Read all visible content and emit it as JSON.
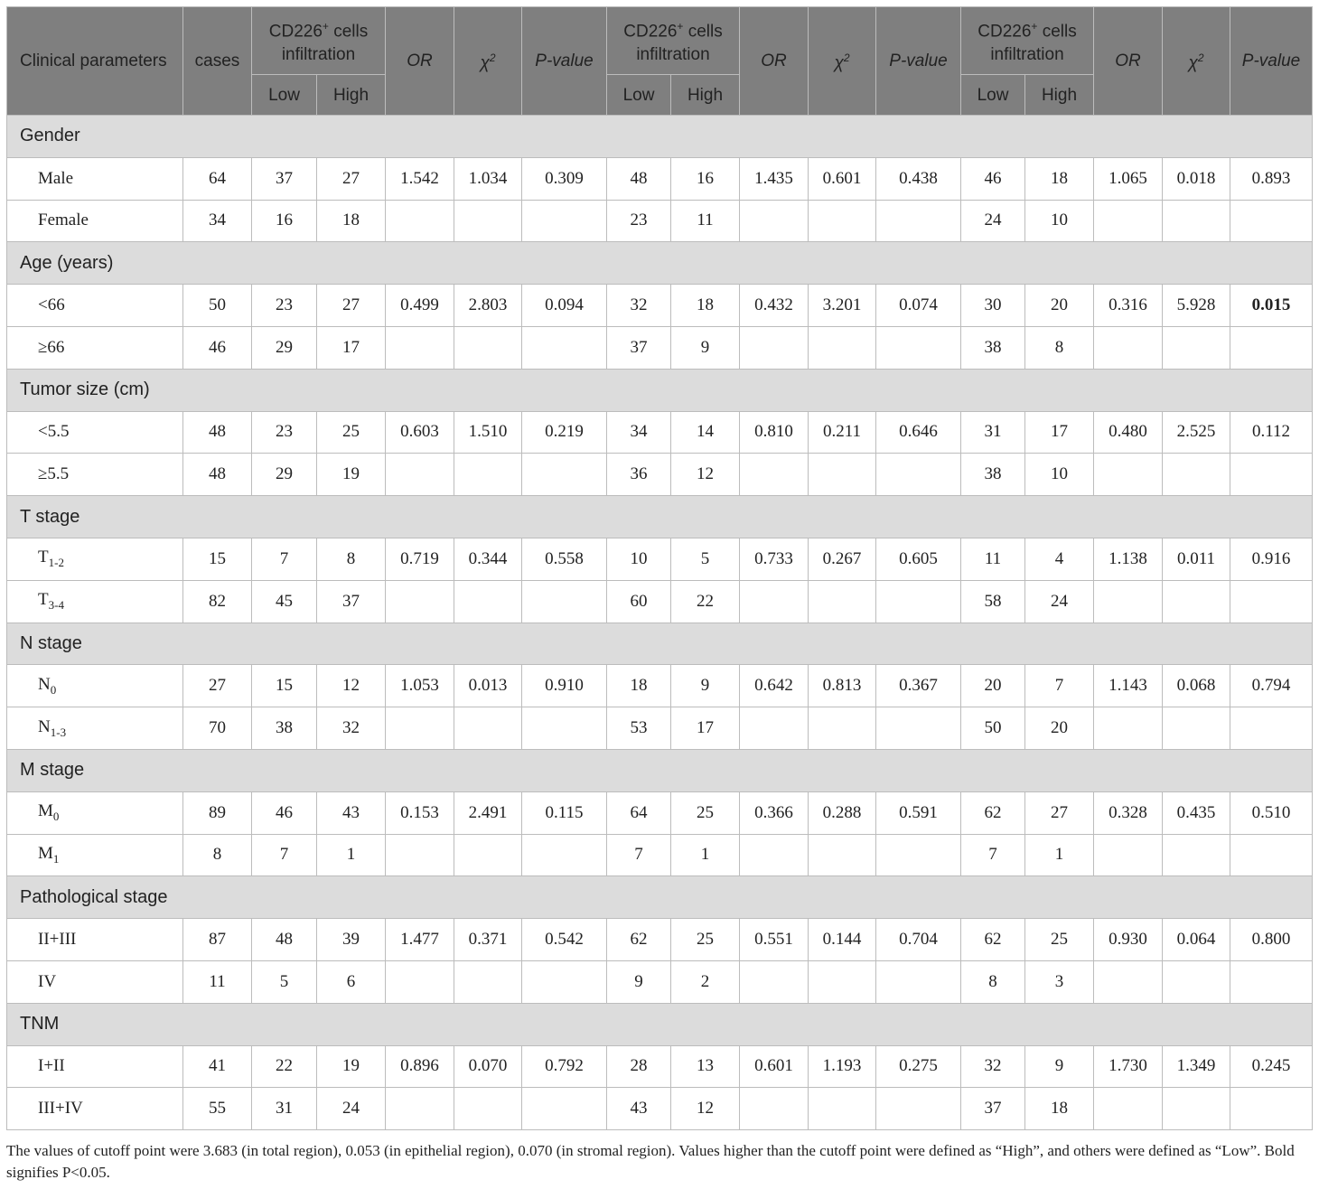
{
  "header": {
    "clinical_parameters": "Clinical parameters",
    "cases": "cases",
    "group_prefix": "CD226",
    "group_sup": "+",
    "group_suffix": " cells infiltration",
    "or": "OR",
    "chi_symbol": "χ",
    "chi_sup": "2",
    "p_value": "P-value",
    "low": "Low",
    "high": "High"
  },
  "sections": [
    {
      "title": "Gender",
      "rows": [
        {
          "label": "Male",
          "sub": "",
          "cells": [
            "64",
            "37",
            "27",
            "1.542",
            "1.034",
            "0.309",
            "48",
            "16",
            "1.435",
            "0.601",
            "0.438",
            "46",
            "18",
            "1.065",
            "0.018",
            "0.893"
          ]
        },
        {
          "label": "Female",
          "sub": "",
          "cells": [
            "34",
            "16",
            "18",
            "",
            "",
            "",
            "23",
            "11",
            "",
            "",
            "",
            "24",
            "10",
            "",
            "",
            ""
          ]
        }
      ]
    },
    {
      "title": "Age (years)",
      "rows": [
        {
          "label": "<66",
          "sub": "",
          "cells": [
            "50",
            "23",
            "27",
            "0.499",
            "2.803",
            "0.094",
            "32",
            "18",
            "0.432",
            "3.201",
            "0.074",
            "30",
            "20",
            "0.316",
            "5.928",
            "0.015"
          ],
          "bold": [
            15
          ]
        },
        {
          "label": "≥66",
          "sub": "",
          "cells": [
            "46",
            "29",
            "17",
            "",
            "",
            "",
            "37",
            "9",
            "",
            "",
            "",
            "38",
            "8",
            "",
            "",
            ""
          ]
        }
      ]
    },
    {
      "title": "Tumor size (cm)",
      "rows": [
        {
          "label": "<5.5",
          "sub": "",
          "cells": [
            "48",
            "23",
            "25",
            "0.603",
            "1.510",
            "0.219",
            "34",
            "14",
            "0.810",
            "0.211",
            "0.646",
            "31",
            "17",
            "0.480",
            "2.525",
            "0.112"
          ]
        },
        {
          "label": "≥5.5",
          "sub": "",
          "cells": [
            "48",
            "29",
            "19",
            "",
            "",
            "",
            "36",
            "12",
            "",
            "",
            "",
            "38",
            "10",
            "",
            "",
            ""
          ]
        }
      ]
    },
    {
      "title": "T stage",
      "rows": [
        {
          "label": "T",
          "sub": "1-2",
          "cells": [
            "15",
            "7",
            "8",
            "0.719",
            "0.344",
            "0.558",
            "10",
            "5",
            "0.733",
            "0.267",
            "0.605",
            "11",
            "4",
            "1.138",
            "0.011",
            "0.916"
          ]
        },
        {
          "label": "T",
          "sub": "3-4",
          "cells": [
            "82",
            "45",
            "37",
            "",
            "",
            "",
            "60",
            "22",
            "",
            "",
            "",
            "58",
            "24",
            "",
            "",
            ""
          ]
        }
      ]
    },
    {
      "title": "N stage",
      "rows": [
        {
          "label": "N",
          "sub": "0",
          "cells": [
            "27",
            "15",
            "12",
            "1.053",
            "0.013",
            "0.910",
            "18",
            "9",
            "0.642",
            "0.813",
            "0.367",
            "20",
            "7",
            "1.143",
            "0.068",
            "0.794"
          ]
        },
        {
          "label": "N",
          "sub": "1-3",
          "cells": [
            "70",
            "38",
            "32",
            "",
            "",
            "",
            "53",
            "17",
            "",
            "",
            "",
            "50",
            "20",
            "",
            "",
            ""
          ]
        }
      ]
    },
    {
      "title": "M stage",
      "rows": [
        {
          "label": "M",
          "sub": "0",
          "cells": [
            "89",
            "46",
            "43",
            "0.153",
            "2.491",
            "0.115",
            "64",
            "25",
            "0.366",
            "0.288",
            "0.591",
            "62",
            "27",
            "0.328",
            "0.435",
            "0.510"
          ]
        },
        {
          "label": "M",
          "sub": "1",
          "cells": [
            "8",
            "7",
            "1",
            "",
            "",
            "",
            "7",
            "1",
            "",
            "",
            "",
            "7",
            "1",
            "",
            "",
            ""
          ]
        }
      ]
    },
    {
      "title": "Pathological stage",
      "rows": [
        {
          "label": "II+III",
          "sub": "",
          "cells": [
            "87",
            "48",
            "39",
            "1.477",
            "0.371",
            "0.542",
            "62",
            "25",
            "0.551",
            "0.144",
            "0.704",
            "62",
            "25",
            "0.930",
            "0.064",
            "0.800"
          ]
        },
        {
          "label": "IV",
          "sub": "",
          "cells": [
            "11",
            "5",
            "6",
            "",
            "",
            "",
            "9",
            "2",
            "",
            "",
            "",
            "8",
            "3",
            "",
            "",
            ""
          ]
        }
      ]
    },
    {
      "title": "TNM",
      "rows": [
        {
          "label": "I+II",
          "sub": "",
          "cells": [
            "41",
            "22",
            "19",
            "0.896",
            "0.070",
            "0.792",
            "28",
            "13",
            "0.601",
            "1.193",
            "0.275",
            "32",
            "9",
            "1.730",
            "1.349",
            "0.245"
          ]
        },
        {
          "label": "III+IV",
          "sub": "",
          "cells": [
            "55",
            "31",
            "24",
            "",
            "",
            "",
            "43",
            "12",
            "",
            "",
            "",
            "37",
            "18",
            "",
            "",
            ""
          ]
        }
      ]
    }
  ],
  "footnote": "The values of cutoff point were 3.683 (in total region), 0.053 (in epithelial region), 0.070 (in stromal region). Values higher than the cutoff point were defined as “High”, and others were defined as “Low”. Bold signifies P<0.05."
}
